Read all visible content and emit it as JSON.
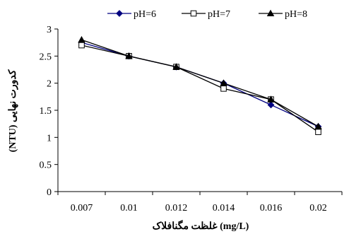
{
  "chart_data": {
    "type": "line",
    "title": "",
    "xlabel": "غلظت مگنافلاک (mg/L)",
    "ylabel": "(NTU) کدورت نهایی",
    "categories": [
      "0.007",
      "0.01",
      "0.012",
      "0.014",
      "0.016",
      "0.02"
    ],
    "ylim": [
      0,
      3
    ],
    "yticks": [
      "0",
      "0.5",
      "1",
      "1.5",
      "2",
      "2.5",
      "3"
    ],
    "grid": false,
    "legend_position": "top",
    "series": [
      {
        "name": "pH=6",
        "marker": "diamond",
        "color": "#000080",
        "values": [
          2.75,
          2.5,
          2.3,
          2.0,
          1.6,
          1.2
        ]
      },
      {
        "name": "pH=7",
        "marker": "square-open",
        "color": "#000000",
        "values": [
          2.7,
          2.5,
          2.3,
          1.9,
          1.7,
          1.1
        ]
      },
      {
        "name": "pH=8",
        "marker": "triangle",
        "color": "#000000",
        "values": [
          2.8,
          2.5,
          2.3,
          2.0,
          1.7,
          1.2
        ]
      }
    ]
  }
}
